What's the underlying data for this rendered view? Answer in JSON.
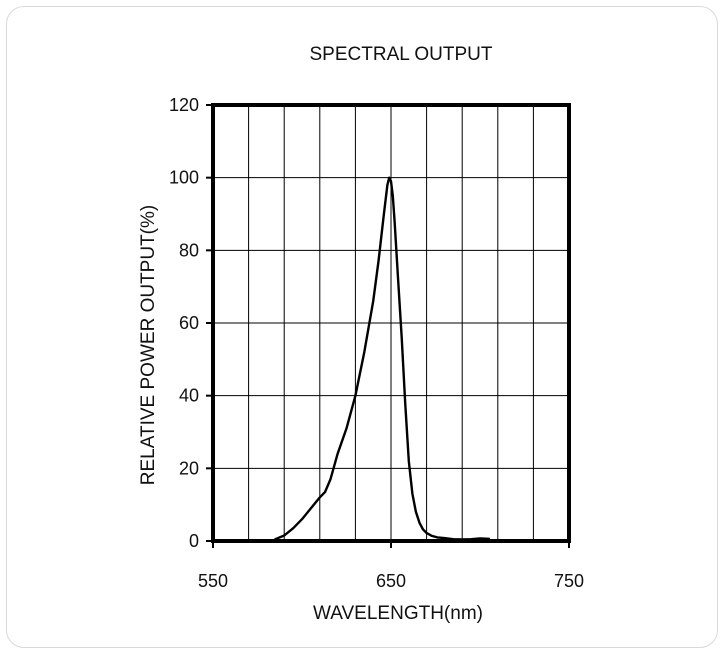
{
  "chart_data": {
    "type": "line",
    "title": "SPECTRAL OUTPUT",
    "xlabel": "WAVELENGTH(nm)",
    "ylabel": "RELATIVE POWER OUTPUT(%)",
    "xlim": [
      550,
      750
    ],
    "ylim": [
      0,
      120
    ],
    "xticks": [
      550,
      650,
      750
    ],
    "yticks": [
      0,
      20,
      40,
      60,
      80,
      100,
      120
    ],
    "x_gridlines": [
      550,
      570,
      590,
      610,
      630,
      650,
      670,
      690,
      710,
      730,
      750
    ],
    "grid": true,
    "series": [
      {
        "color": "#000000",
        "x": [
          585,
          590,
          595,
          600,
          605,
          610,
          613,
          616,
          620,
          625,
          630,
          635,
          640,
          643,
          646,
          648,
          649,
          650,
          651,
          652,
          654,
          656,
          658,
          660,
          662,
          664,
          666,
          668,
          670,
          673,
          676,
          680,
          685,
          690,
          695,
          700,
          705
        ],
        "y": [
          0.5,
          1.5,
          3.5,
          6,
          9,
          12,
          13.5,
          17,
          24,
          31,
          40,
          52,
          66,
          77,
          90,
          98,
          100,
          99,
          95,
          88,
          72,
          56,
          38,
          22,
          13,
          8,
          5,
          3.2,
          2.2,
          1.4,
          1.0,
          0.8,
          0.5,
          0.4,
          0.5,
          0.7,
          0.6
        ]
      }
    ]
  }
}
